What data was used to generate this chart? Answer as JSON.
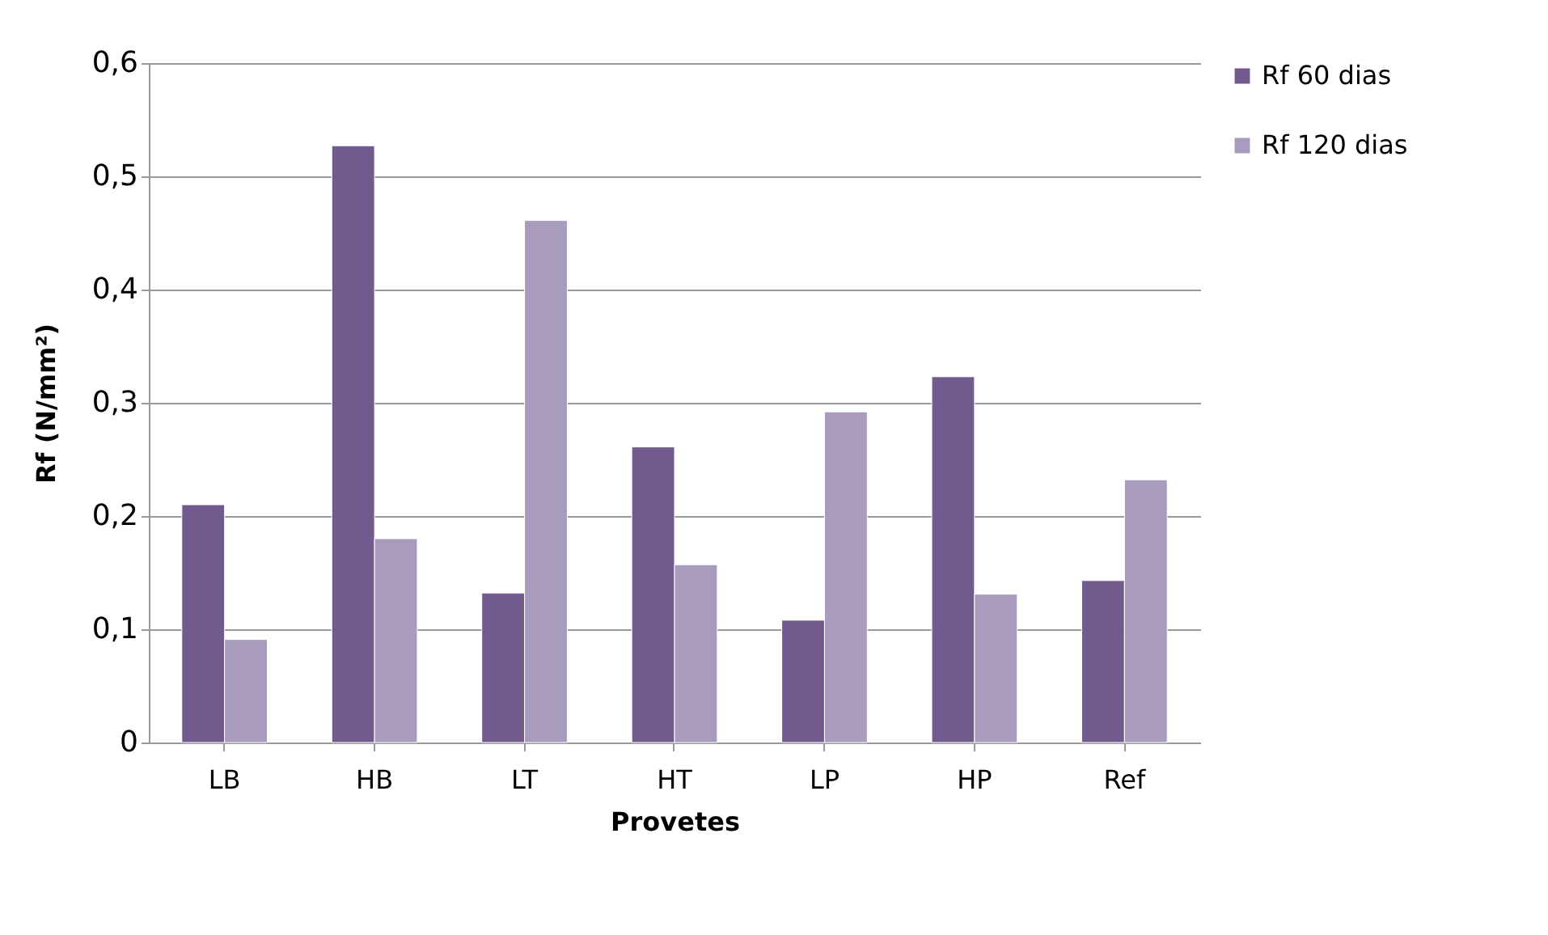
{
  "chart_data": {
    "type": "bar",
    "xlabel": "Provetes",
    "ylabel": "Rf (N/mm²)",
    "categories": [
      "LB",
      "HB",
      "LT",
      "HT",
      "LP",
      "HP",
      "Ref"
    ],
    "series": [
      {
        "name": "Rf 60 dias",
        "color": "#725a8e",
        "values": [
          0.21,
          0.527,
          0.132,
          0.261,
          0.108,
          0.323,
          0.143
        ]
      },
      {
        "name": "Rf 120 dias",
        "color": "#a99bbe",
        "values": [
          0.091,
          0.18,
          0.461,
          0.157,
          0.292,
          0.131,
          0.232
        ]
      }
    ],
    "ylim": [
      0,
      0.6
    ],
    "yticks": [
      0,
      {
        "value": 0.1,
        "label": "0,1"
      },
      {
        "value": 0.2,
        "label": "0,2"
      },
      {
        "value": 0.3,
        "label": "0,3"
      },
      {
        "value": 0.4,
        "label": "0,4"
      },
      {
        "value": 0.5,
        "label": "0,5"
      },
      {
        "value": 0.6,
        "label": "0,6"
      }
    ],
    "grid": "y",
    "legend": "right"
  }
}
